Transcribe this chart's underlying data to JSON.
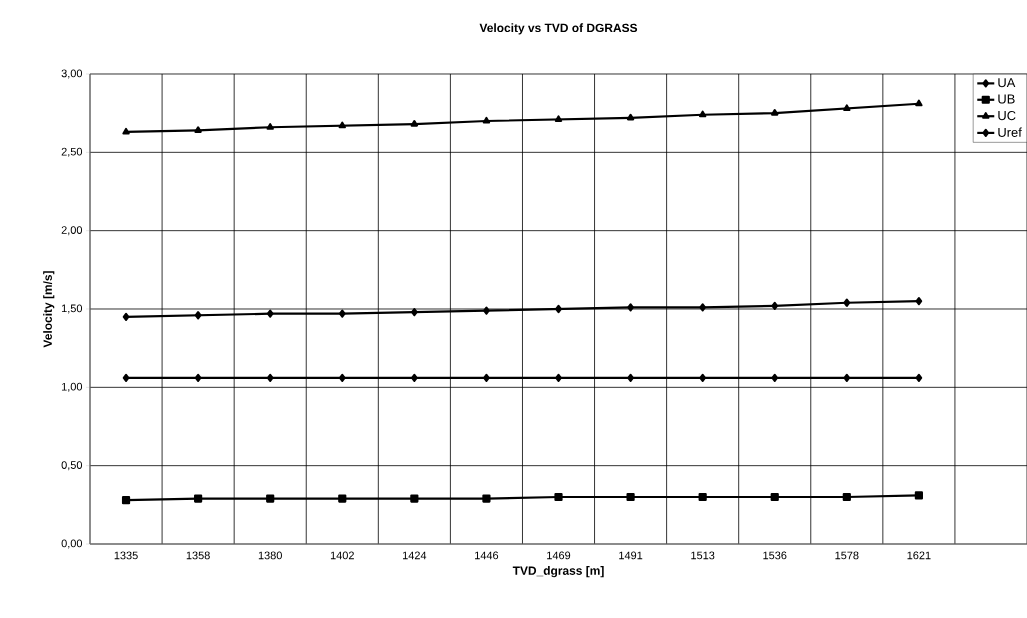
{
  "chart_data": {
    "type": "line",
    "title": "Velocity vs TVD of DGRASS",
    "xlabel": "TVD_dgrass [m]",
    "ylabel": "Velocity [m/s]",
    "categories": [
      "1335",
      "1358",
      "1380",
      "1402",
      "1424",
      "1446",
      "1469",
      "1491",
      "1513",
      "1536",
      "1578",
      "1621"
    ],
    "series": [
      {
        "name": "UA",
        "color": "#000000",
        "marker": "diamond",
        "values": [
          1.45,
          1.46,
          1.47,
          1.47,
          1.48,
          1.49,
          1.5,
          1.51,
          1.51,
          1.52,
          1.54,
          1.55
        ]
      },
      {
        "name": "UB",
        "color": "#000000",
        "marker": "square",
        "values": [
          0.28,
          0.29,
          0.29,
          0.29,
          0.29,
          0.29,
          0.3,
          0.3,
          0.3,
          0.3,
          0.3,
          0.31
        ]
      },
      {
        "name": "UC",
        "color": "#000000",
        "marker": "triangle",
        "values": [
          2.63,
          2.64,
          2.66,
          2.67,
          2.68,
          2.7,
          2.71,
          2.72,
          2.74,
          2.75,
          2.78,
          2.81
        ]
      },
      {
        "name": "Uref",
        "color": "#000000",
        "marker": "diamond",
        "values": [
          1.06,
          1.06,
          1.06,
          1.06,
          1.06,
          1.06,
          1.06,
          1.06,
          1.06,
          1.06,
          1.06,
          1.06
        ]
      }
    ],
    "ylim": [
      0,
      3
    ],
    "yticks": [
      {
        "value": 0,
        "label": "0,00"
      },
      {
        "value": 0.5,
        "label": "0,50"
      },
      {
        "value": 1,
        "label": "1,00"
      },
      {
        "value": 1.5,
        "label": "1,50"
      },
      {
        "value": 2,
        "label": "2,00"
      },
      {
        "value": 2.5,
        "label": "2,50"
      },
      {
        "value": 3,
        "label": "3,00"
      }
    ],
    "grid": true,
    "legend": "top right",
    "line_style": "solid"
  }
}
